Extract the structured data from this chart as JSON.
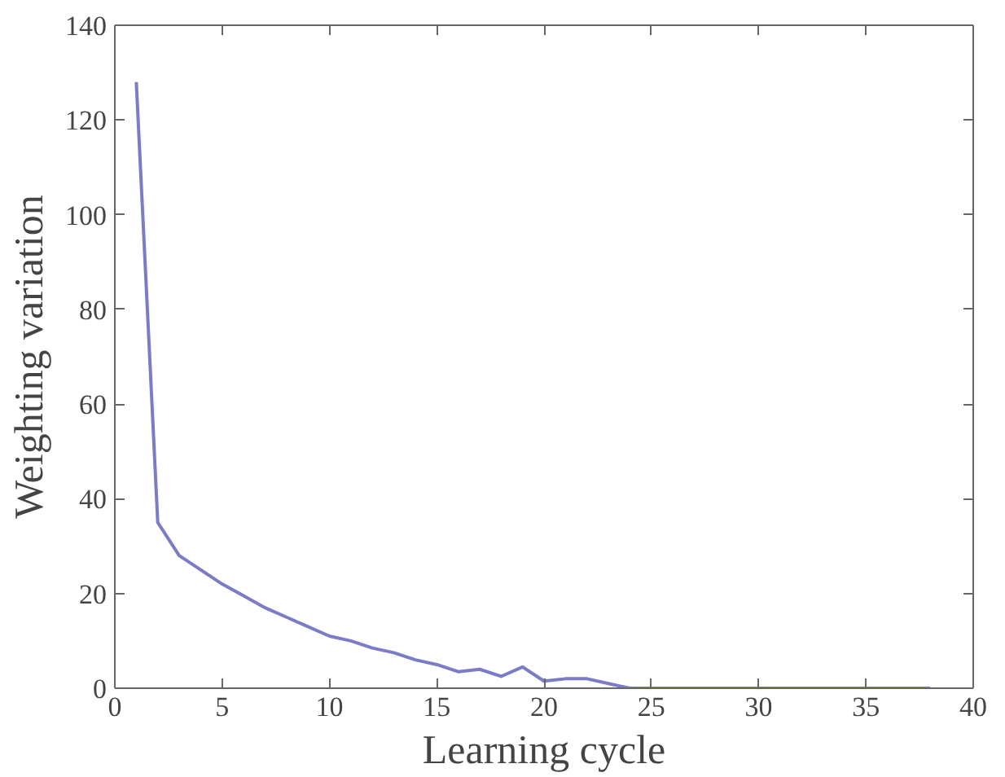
{
  "chart_data": {
    "type": "line",
    "xlabel": "Learning cycle",
    "ylabel": "Weighting variation",
    "x": [
      1,
      2,
      3,
      4,
      5,
      6,
      7,
      8,
      9,
      10,
      11,
      12,
      13,
      14,
      15,
      16,
      17,
      18,
      19,
      20,
      21,
      22,
      23,
      24,
      25,
      26,
      27,
      28,
      29,
      30,
      31,
      32,
      33,
      34,
      35,
      36,
      37,
      38
    ],
    "series": [
      {
        "color": "#7b7bc8",
        "values": [
          128,
          35,
          28,
          25,
          22,
          19.5,
          17,
          15,
          13,
          11,
          10,
          8.5,
          7.5,
          6,
          5,
          3.5,
          4,
          2.5,
          4.5,
          1.5,
          2,
          2,
          1,
          0,
          0,
          0,
          0,
          0,
          0,
          0,
          0,
          0,
          0,
          0,
          0,
          0,
          0,
          0
        ]
      }
    ],
    "xlim": [
      0,
      40
    ],
    "ylim": [
      0,
      140
    ],
    "xticks": [
      0,
      5,
      10,
      15,
      20,
      25,
      30,
      35,
      40
    ],
    "yticks": [
      0,
      20,
      40,
      60,
      80,
      100,
      120,
      140
    ],
    "grid": false,
    "marker": "none",
    "line_style": "solid"
  }
}
